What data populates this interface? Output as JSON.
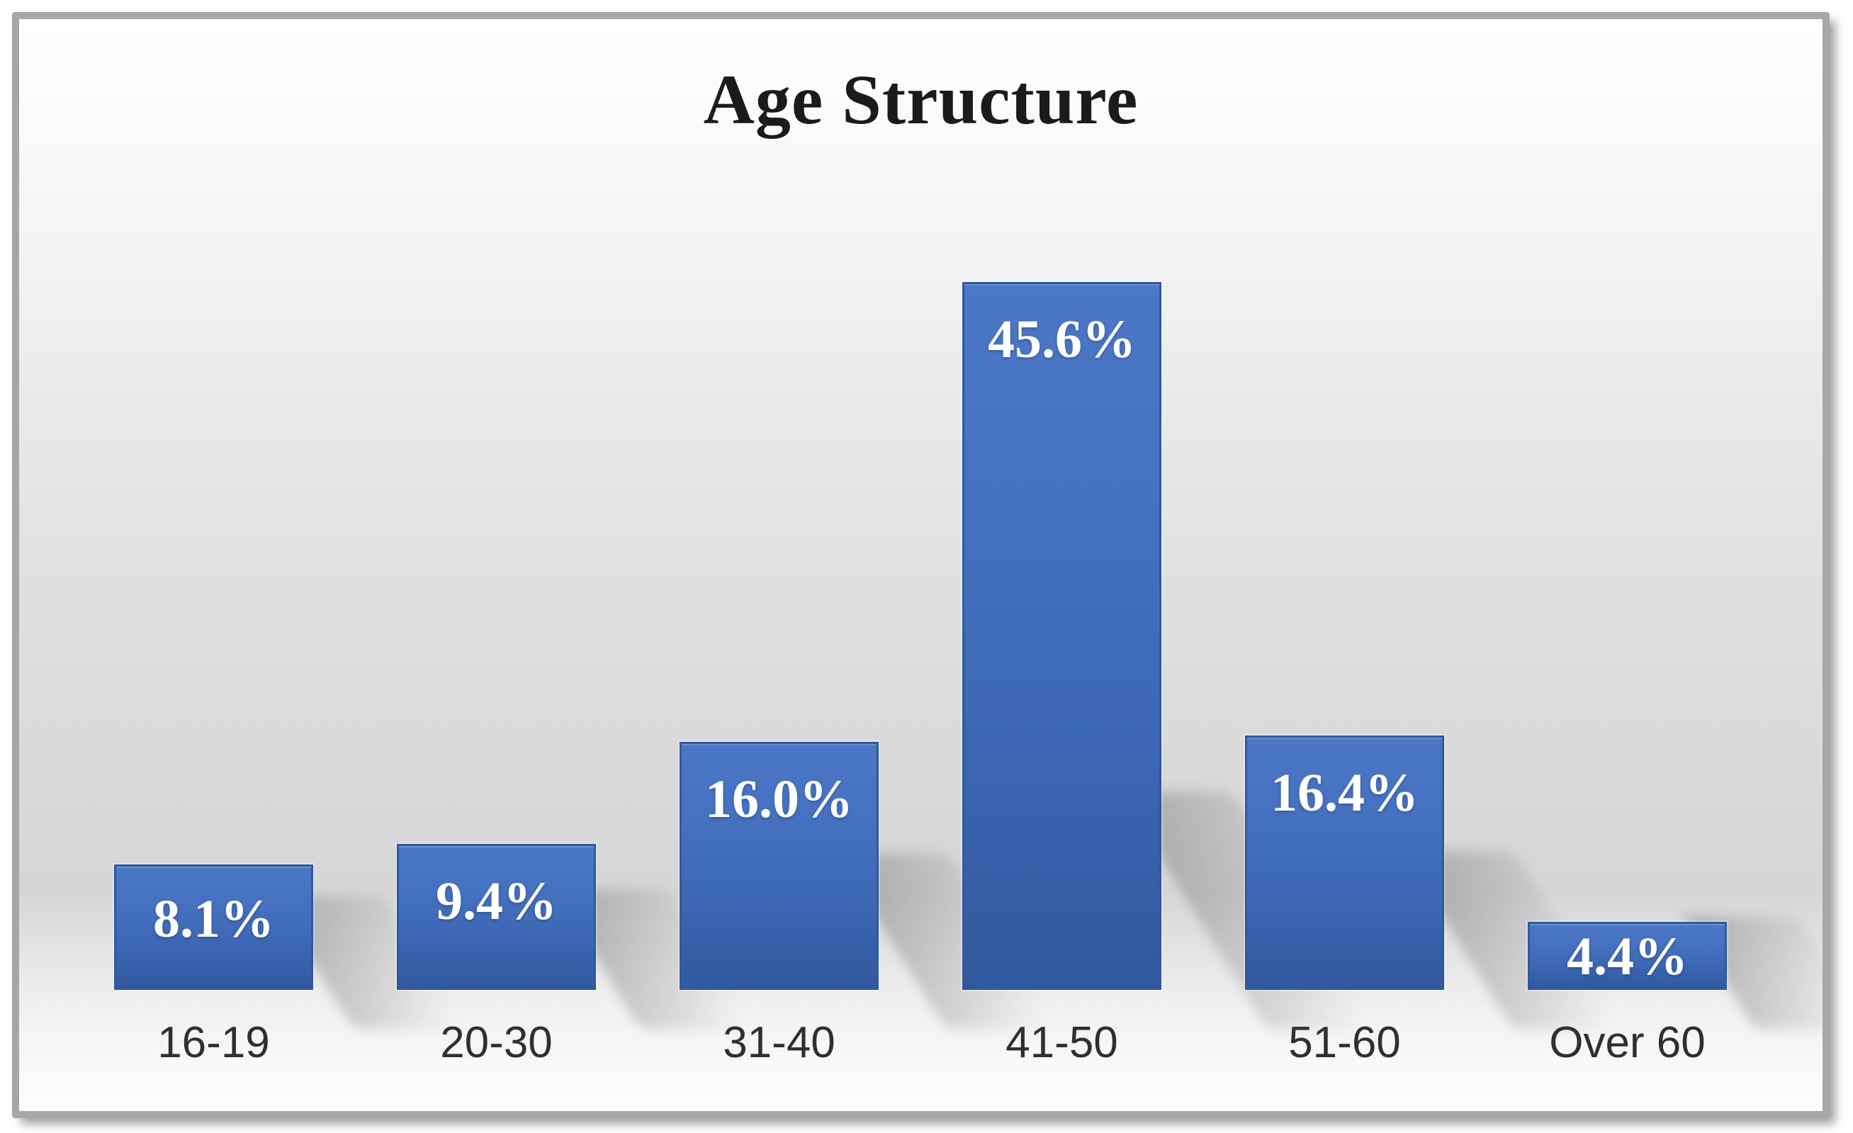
{
  "chart_data": {
    "type": "bar",
    "title": "Age Structure",
    "categories": [
      "16-19",
      "20-30",
      "31-40",
      "41-50",
      "51-60",
      "Over 60"
    ],
    "values": [
      8.1,
      9.4,
      16.0,
      45.6,
      16.4,
      4.4
    ],
    "value_labels": [
      "8.1%",
      "9.4%",
      "16.0%",
      "45.6%",
      "16.4%",
      "4.4%"
    ],
    "xlabel": "",
    "ylabel": "",
    "ylim": [
      0,
      50
    ],
    "grid": false,
    "legend": false,
    "value_labels_position": "inside-top",
    "colors": {
      "bar_top": "#4b77c6",
      "bar_mid1": "#4470bf",
      "bar_mid2": "#3b65b2",
      "bar_bottom": "#32599e",
      "bar_border": "#2f5a9c",
      "value_label": "#ffffff",
      "category_label": "#2f2f2f",
      "title": "#1b1b1b",
      "frame_border": "#a7a7a7"
    }
  }
}
